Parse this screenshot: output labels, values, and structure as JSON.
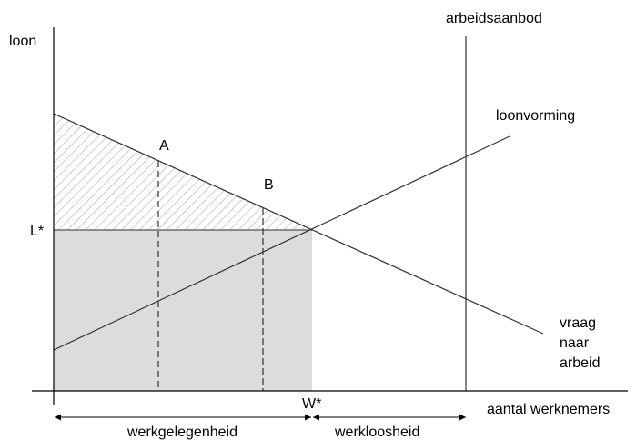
{
  "axes": {
    "y_label": "loon",
    "x_label": "aantal werknemers"
  },
  "curves": {
    "supply": "arbeidsaanbod",
    "wage_formation": "loonvorming",
    "demand": [
      "vraag",
      "naar",
      "arbeid"
    ]
  },
  "points": {
    "a": "A",
    "b": "B",
    "wage": "L*",
    "employment": "W*"
  },
  "ranges": {
    "employment": "werkgelegenheid",
    "unemployment": "werkloosheid"
  }
}
